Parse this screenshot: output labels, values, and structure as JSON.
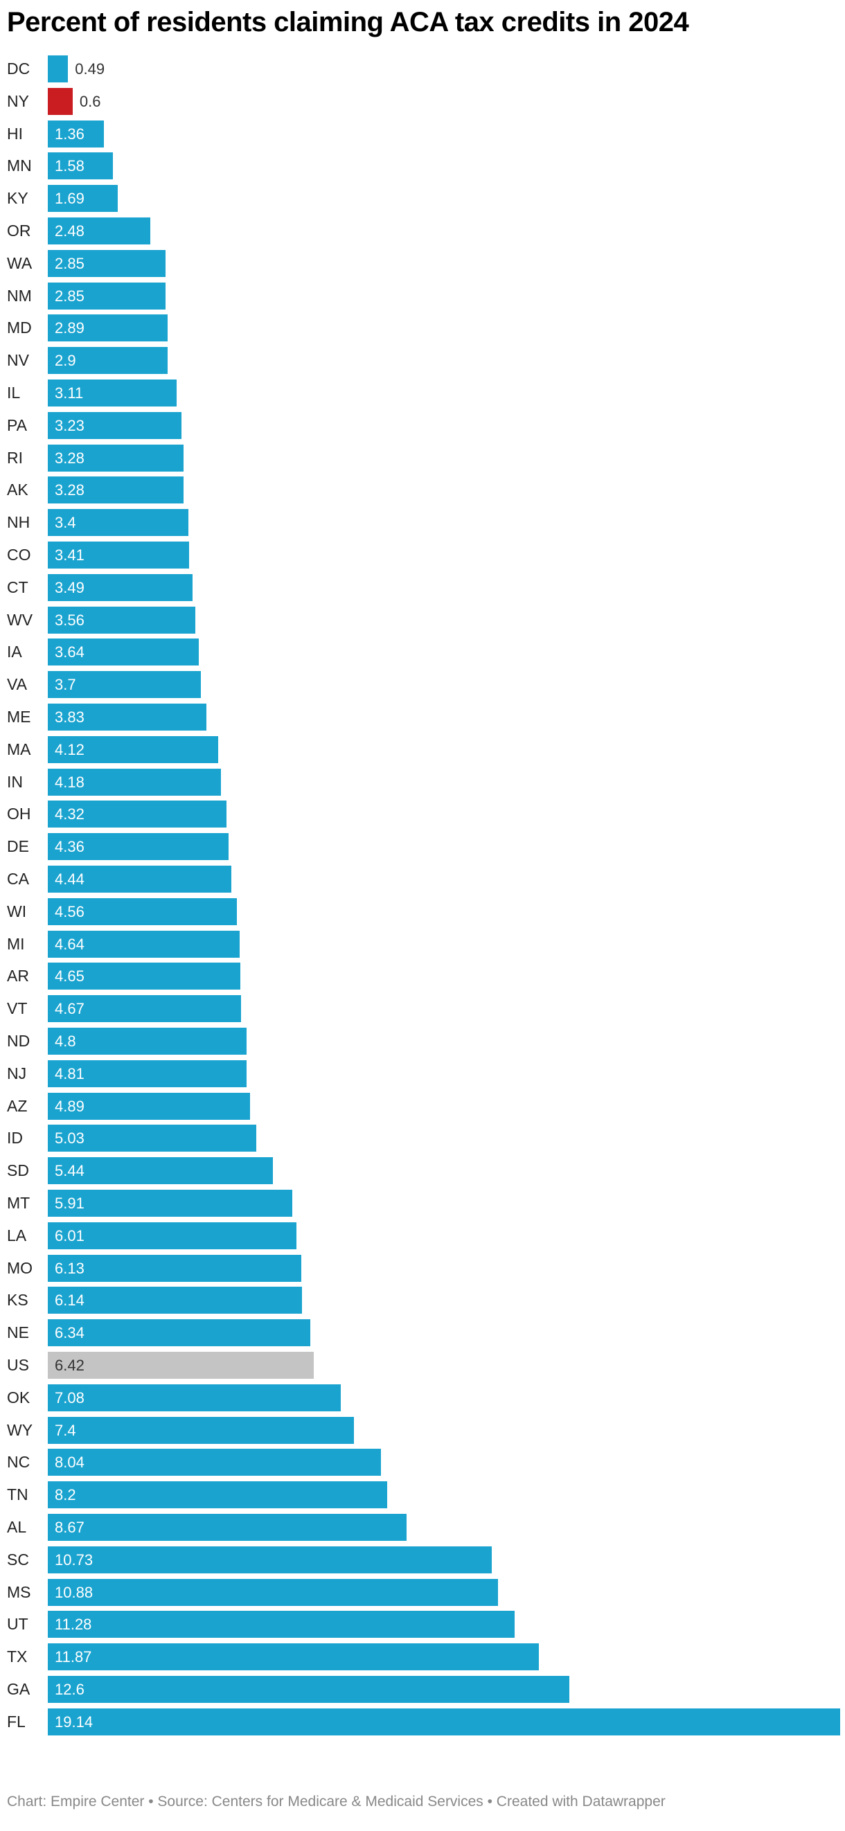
{
  "chart_data": {
    "type": "bar",
    "orientation": "horizontal",
    "title": "Percent of residents claiming ACA tax credits in 2024",
    "categories": [
      "DC",
      "NY",
      "HI",
      "MN",
      "KY",
      "OR",
      "WA",
      "NM",
      "MD",
      "NV",
      "IL",
      "PA",
      "RI",
      "AK",
      "NH",
      "CO",
      "CT",
      "WV",
      "IA",
      "VA",
      "ME",
      "MA",
      "IN",
      "OH",
      "DE",
      "CA",
      "WI",
      "MI",
      "AR",
      "VT",
      "ND",
      "NJ",
      "AZ",
      "ID",
      "SD",
      "MT",
      "LA",
      "MO",
      "KS",
      "NE",
      "US",
      "OK",
      "WY",
      "NC",
      "TN",
      "AL",
      "SC",
      "MS",
      "UT",
      "TX",
      "GA",
      "FL"
    ],
    "values": [
      0.49,
      0.6,
      1.36,
      1.58,
      1.69,
      2.48,
      2.85,
      2.85,
      2.89,
      2.9,
      3.11,
      3.23,
      3.28,
      3.28,
      3.4,
      3.41,
      3.49,
      3.56,
      3.64,
      3.7,
      3.83,
      4.12,
      4.18,
      4.32,
      4.36,
      4.44,
      4.56,
      4.64,
      4.65,
      4.67,
      4.8,
      4.81,
      4.89,
      5.03,
      5.44,
      5.91,
      6.01,
      6.13,
      6.14,
      6.34,
      6.42,
      7.08,
      7.4,
      8.04,
      8.2,
      8.67,
      10.73,
      10.88,
      11.28,
      11.87,
      12.6,
      19.14
    ],
    "labels": [
      "0.49",
      "0.6",
      "1.36",
      "1.58",
      "1.69",
      "2.48",
      "2.85",
      "2.85",
      "2.89",
      "2.9",
      "3.11",
      "3.23",
      "3.28",
      "3.28",
      "3.4",
      "3.41",
      "3.49",
      "3.56",
      "3.64",
      "3.7",
      "3.83",
      "4.12",
      "4.18",
      "4.32",
      "4.36",
      "4.44",
      "4.56",
      "4.64",
      "4.65",
      "4.67",
      "4.8",
      "4.81",
      "4.89",
      "5.03",
      "5.44",
      "5.91",
      "6.01",
      "6.13",
      "6.14",
      "6.34",
      "6.42",
      "7.08",
      "7.4",
      "8.04",
      "8.2",
      "8.67",
      "10.73",
      "10.88",
      "11.28",
      "11.87",
      "12.6",
      "19.14"
    ],
    "xlim": [
      0,
      19.14
    ],
    "grid": false,
    "colors": {
      "default": "#1aa3cf",
      "highlight": {
        "NY": "#c91d22",
        "US": "#c4c4c4"
      }
    }
  },
  "footer": "Chart: Empire Center • Source: Centers for Medicare & Medicaid Services • Created with Datawrapper"
}
